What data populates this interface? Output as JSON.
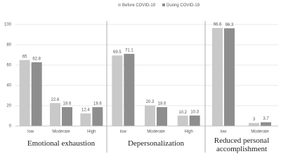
{
  "chart_data": {
    "type": "bar",
    "ylim": [
      0,
      100
    ],
    "yticks": [
      0,
      20,
      40,
      60,
      80,
      100
    ],
    "grid": true,
    "legend": "top",
    "series": [
      {
        "name": "Before COVID-19",
        "color": "#c9c9c9"
      },
      {
        "name": "During COVID-19",
        "color": "#8e8e8e"
      }
    ],
    "panels": [
      {
        "title": "Emotional exhaustion",
        "categories": [
          "low",
          "Moderate",
          "High"
        ],
        "series": [
          {
            "values": [
              65,
              22.6,
              12.4
            ]
          },
          {
            "values": [
              62.8,
              18.6,
              18.6
            ]
          }
        ]
      },
      {
        "title": "Depersonalization",
        "categories": [
          "low",
          "Moderate",
          "High"
        ],
        "series": [
          {
            "values": [
              69.5,
              20.3,
              10.2
            ]
          },
          {
            "values": [
              71.1,
              18.6,
              10.3
            ]
          }
        ]
      },
      {
        "title": "Reduced personal accomplishment",
        "categories": [
          "low",
          "Moderate"
        ],
        "series": [
          {
            "values": [
              96.6,
              3
            ]
          },
          {
            "values": [
              96.3,
              3.7
            ]
          }
        ]
      }
    ]
  }
}
